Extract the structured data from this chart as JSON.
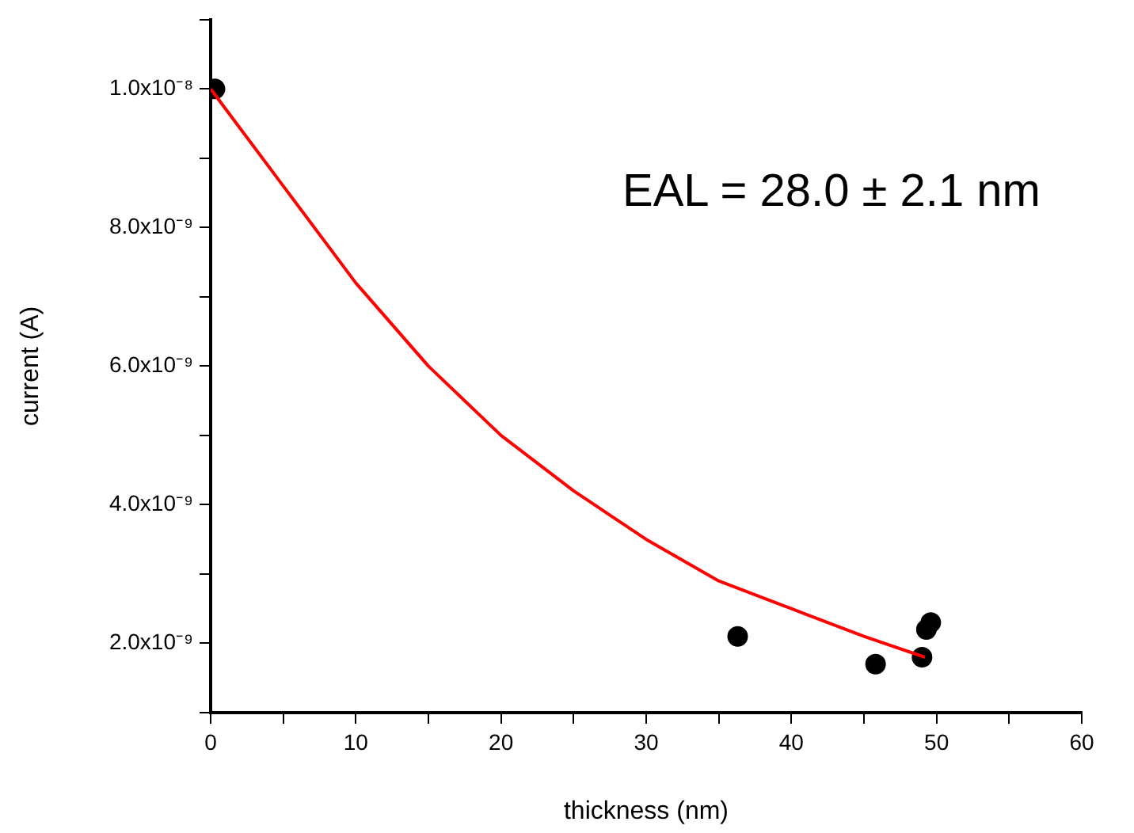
{
  "chart_data": {
    "type": "scatter",
    "xlabel": "thickness (nm)",
    "ylabel": "current (A)",
    "xlim": [
      0,
      60
    ],
    "ylim": [
      1e-09,
      1.1e-08
    ],
    "xticks": [
      0,
      {
        "value": 5,
        "label": null
      },
      10,
      {
        "value": 15,
        "label": null
      },
      20,
      {
        "value": 25,
        "label": null
      },
      30,
      {
        "value": 35,
        "label": null
      },
      40,
      {
        "value": 45,
        "label": null
      },
      50,
      {
        "value": 55,
        "label": null
      },
      60
    ],
    "yticks": [
      {
        "value": 1e-09,
        "label": null
      },
      {
        "value": 2e-09,
        "label": "2.0x10⁻⁹"
      },
      {
        "value": 3e-09,
        "label": null
      },
      {
        "value": 4e-09,
        "label": "4.0x10⁻⁹"
      },
      {
        "value": 5e-09,
        "label": null
      },
      {
        "value": 6e-09,
        "label": "6.0x10⁻⁹"
      },
      {
        "value": 7e-09,
        "label": null
      },
      {
        "value": 8e-09,
        "label": "8.0x10⁻⁹"
      },
      {
        "value": 9e-09,
        "label": null
      },
      {
        "value": 1e-08,
        "label": "1.0x10⁻⁸"
      },
      {
        "value": 1.1e-08,
        "label": null
      }
    ],
    "marker": "circle",
    "series": [
      {
        "color": "#000000",
        "x": [
          0.3,
          36.3,
          45.8,
          49.0,
          49.3,
          49.6
        ],
        "values": [
          1e-08,
          2.1e-09,
          1.7e-09,
          1.8e-09,
          2.2e-09,
          2.3e-09
        ]
      },
      {
        "type": "line",
        "color": "#ff0000",
        "line_style": "solid",
        "marker": "none",
        "x": [
          0,
          5,
          10,
          15,
          20,
          25,
          30,
          35,
          40,
          45,
          49.2
        ],
        "values": [
          1e-08,
          8.6e-09,
          7.2e-09,
          6e-09,
          5e-09,
          4.2e-09,
          3.5e-09,
          2.9e-09,
          2.5e-09,
          2.1e-09,
          1.8e-09
        ]
      }
    ],
    "annotations": [
      "EAL = 28.0 ± 2.1 nm"
    ]
  }
}
